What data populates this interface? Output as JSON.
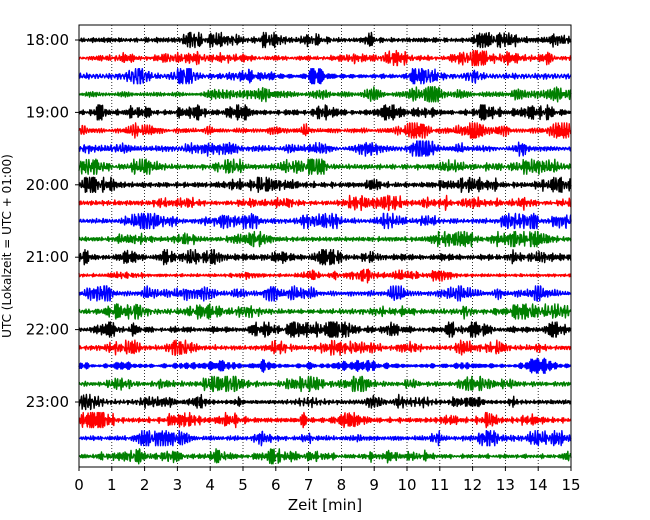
{
  "chart_data": {
    "type": "line",
    "title": "",
    "xlabel": "Zeit  [min]",
    "ylabel": "UTC (Lokalzeit = UTC + 01:00)",
    "xlim": [
      0,
      15
    ],
    "x_ticks": [
      0,
      1,
      2,
      3,
      4,
      5,
      6,
      7,
      8,
      9,
      10,
      11,
      12,
      13,
      14,
      15
    ],
    "y_tick_labels": [
      "18:00",
      "19:00",
      "20:00",
      "21:00",
      "22:00",
      "23:00"
    ],
    "row_start_times": [
      "18:00",
      "18:15",
      "18:30",
      "18:45",
      "19:00",
      "19:15",
      "19:30",
      "19:45",
      "20:00",
      "20:15",
      "20:30",
      "20:45",
      "21:00",
      "21:15",
      "21:30",
      "21:45",
      "22:00",
      "22:15",
      "22:30",
      "22:45",
      "23:00",
      "23:15",
      "23:30",
      "23:45"
    ],
    "trace_color_cycle": [
      "#000000",
      "#ff0000",
      "#0000ff",
      "#008000"
    ],
    "grid": "vertical dotted lines at each minute",
    "legend": "none"
  }
}
